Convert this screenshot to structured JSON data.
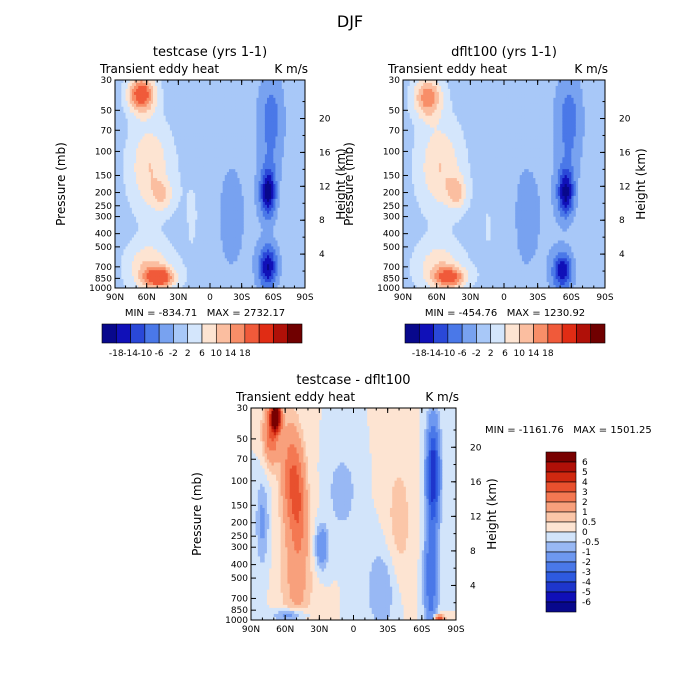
{
  "page_title": "DJF",
  "chart_data": [
    {
      "type": "heatmap",
      "title": "testcase (yrs 1-1)",
      "left_label": "Transient eddy heat",
      "right_label": "K m/s",
      "xlabel": "",
      "ylabel": "Pressure (mb)",
      "y2label": "Height (km)",
      "x_ticks": [
        "90N",
        "60N",
        "30N",
        "0",
        "30S",
        "60S",
        "90S"
      ],
      "y_ticks": [
        "30",
        "50",
        "70",
        "100",
        "150",
        "200",
        "250",
        "300",
        "400",
        "500",
        "700",
        "850",
        "1000"
      ],
      "y2_ticks": [
        "20",
        "16",
        "12",
        "8",
        "4"
      ],
      "min_max": "MIN = -834.71   MAX = 2732.17",
      "colorbar_labels": [
        "-18",
        "-14",
        "-10",
        "-6",
        "-2",
        "2",
        "6",
        "10",
        "14",
        "18"
      ],
      "levels": [
        -18,
        -14,
        -10,
        -6,
        -2,
        2,
        6,
        10,
        14,
        18
      ],
      "colors": [
        "#08088c",
        "#1010b8",
        "#2a48d8",
        "#4a78e8",
        "#78a2f0",
        "#a8c8f8",
        "#d4e6fc",
        "#fde4d2",
        "#fbbea0",
        "#f88e68",
        "#f05a3a",
        "#e02c14",
        "#b01008",
        "#700000"
      ],
      "features": [
        {
          "lat": 65,
          "p": 38,
          "v": 22,
          "lat_w": 9,
          "p_w": 0.22
        },
        {
          "lat": 57,
          "p": 130,
          "v": 10,
          "lat_w": 14,
          "p_w": 0.55
        },
        {
          "lat": 45,
          "p": 210,
          "v": 7,
          "lat_w": 7,
          "p_w": 0.18
        },
        {
          "lat": 48,
          "p": 840,
          "v": 20,
          "lat_w": 10,
          "p_w": 0.12
        },
        {
          "lat": 58,
          "p": 700,
          "v": 10,
          "lat_w": 15,
          "p_w": 0.3
        },
        {
          "lat": -55,
          "p": 200,
          "v": -20,
          "lat_w": 5,
          "p_w": 0.28
        },
        {
          "lat": -55,
          "p": 700,
          "v": -18,
          "lat_w": 6,
          "p_w": 0.25
        },
        {
          "lat": -58,
          "p": 60,
          "v": -8,
          "lat_w": 8,
          "p_w": 0.6
        },
        {
          "lat": -20,
          "p": 300,
          "v": -2.5,
          "lat_w": 18,
          "p_w": 1.2
        },
        {
          "lat": 15,
          "p": 300,
          "v": 2.5,
          "lat_w": 10,
          "p_w": 0.9
        }
      ]
    },
    {
      "type": "heatmap",
      "title": "dflt100 (yrs 1-1)",
      "left_label": "Transient eddy heat",
      "right_label": "K m/s",
      "xlabel": "",
      "ylabel": "Pressure (mb)",
      "y2label": "Height (km)",
      "x_ticks": [
        "90N",
        "60N",
        "30N",
        "0",
        "30S",
        "60S",
        "90S"
      ],
      "y_ticks": [
        "30",
        "50",
        "70",
        "100",
        "150",
        "200",
        "250",
        "300",
        "400",
        "500",
        "700",
        "850",
        "1000"
      ],
      "y2_ticks": [
        "20",
        "16",
        "12",
        "8",
        "4"
      ],
      "min_max": "MIN = -454.76   MAX = 1230.92",
      "colorbar_labels": [
        "-18",
        "-14",
        "-10",
        "-6",
        "-2",
        "2",
        "6",
        "10",
        "14",
        "18"
      ],
      "levels": [
        -18,
        -14,
        -10,
        -6,
        -2,
        2,
        6,
        10,
        14,
        18
      ],
      "colors": [
        "#08088c",
        "#1010b8",
        "#2a48d8",
        "#4a78e8",
        "#78a2f0",
        "#a8c8f8",
        "#d4e6fc",
        "#fde4d2",
        "#fbbea0",
        "#f88e68",
        "#f05a3a",
        "#e02c14",
        "#b01008",
        "#700000"
      ],
      "features": [
        {
          "lat": 68,
          "p": 40,
          "v": 16,
          "lat_w": 9,
          "p_w": 0.25
        },
        {
          "lat": 57,
          "p": 130,
          "v": 10,
          "lat_w": 14,
          "p_w": 0.55
        },
        {
          "lat": 42,
          "p": 200,
          "v": 9,
          "lat_w": 6,
          "p_w": 0.2
        },
        {
          "lat": 48,
          "p": 840,
          "v": 17,
          "lat_w": 10,
          "p_w": 0.12
        },
        {
          "lat": 58,
          "p": 700,
          "v": 9,
          "lat_w": 15,
          "p_w": 0.3
        },
        {
          "lat": -55,
          "p": 200,
          "v": -19,
          "lat_w": 5,
          "p_w": 0.28
        },
        {
          "lat": -52,
          "p": 750,
          "v": -17,
          "lat_w": 6,
          "p_w": 0.22
        },
        {
          "lat": -58,
          "p": 60,
          "v": -8,
          "lat_w": 8,
          "p_w": 0.6
        },
        {
          "lat": -20,
          "p": 300,
          "v": -2.5,
          "lat_w": 18,
          "p_w": 1.2
        },
        {
          "lat": 12,
          "p": 350,
          "v": 2.5,
          "lat_w": 10,
          "p_w": 0.9
        }
      ]
    },
    {
      "type": "heatmap",
      "title": "testcase - dflt100",
      "left_label": "Transient eddy heat",
      "right_label": "K m/s",
      "xlabel": "",
      "ylabel": "Pressure (mb)",
      "y2label": "Height (km)",
      "x_ticks": [
        "90N",
        "60N",
        "30N",
        "0",
        "30S",
        "60S",
        "90S"
      ],
      "y_ticks": [
        "30",
        "50",
        "70",
        "100",
        "150",
        "200",
        "250",
        "300",
        "400",
        "500",
        "700",
        "850",
        "1000"
      ],
      "y2_ticks": [
        "20",
        "16",
        "12",
        "8",
        "4"
      ],
      "min_max": "MIN = -1161.76   MAX = 1501.25",
      "colorbar_labels": [
        "6",
        "5",
        "4",
        "3",
        "2",
        "1",
        "0.5",
        "0",
        "-0.5",
        "-1",
        "-2",
        "-3",
        "-4",
        "-5",
        "-6"
      ],
      "levels": [
        -6,
        -5,
        -4,
        -3,
        -2,
        -1,
        -0.5,
        0,
        0.5,
        1,
        2,
        3,
        4,
        5,
        6
      ],
      "colors": [
        "#08088c",
        "#1010b8",
        "#1e36cc",
        "#2e5ae0",
        "#4a78e8",
        "#6e98f0",
        "#98b8f4",
        "#d2e4fa",
        "#fde4d2",
        "#fbc6a8",
        "#f8a07c",
        "#f47852",
        "#e8502e",
        "#d02810",
        "#b01008",
        "#780000"
      ],
      "features": [
        {
          "lat": 68,
          "p": 35,
          "v": 8,
          "lat_w": 3,
          "p_w": 0.15
        },
        {
          "lat": 72,
          "p": 45,
          "v": 3,
          "lat_w": 5,
          "p_w": 0.35
        },
        {
          "lat": 55,
          "p": 90,
          "v": 2.5,
          "lat_w": 6,
          "p_w": 0.6
        },
        {
          "lat": 48,
          "p": 150,
          "v": 2,
          "lat_w": 5,
          "p_w": 0.6
        },
        {
          "lat": 50,
          "p": 500,
          "v": 1.2,
          "lat_w": 10,
          "p_w": 0.8
        },
        {
          "lat": -70,
          "p": 90,
          "v": -5,
          "lat_w": 4,
          "p_w": 0.6
        },
        {
          "lat": -68,
          "p": 500,
          "v": -3,
          "lat_w": 4,
          "p_w": 0.6
        },
        {
          "lat": 28,
          "p": 300,
          "v": -2,
          "lat_w": 4,
          "p_w": 0.25
        },
        {
          "lat": 80,
          "p": 200,
          "v": -1.2,
          "lat_w": 4,
          "p_w": 0.5
        },
        {
          "lat": -25,
          "p": 600,
          "v": -1,
          "lat_w": 10,
          "p_w": 0.5
        },
        {
          "lat": 10,
          "p": 120,
          "v": -1,
          "lat_w": 8,
          "p_w": 0.4
        },
        {
          "lat": -40,
          "p": 200,
          "v": 0.8,
          "lat_w": 8,
          "p_w": 0.8
        },
        {
          "lat": 55,
          "p": 930,
          "v": -1.8,
          "lat_w": 10,
          "p_w": 0.08
        },
        {
          "lat": -75,
          "p": 970,
          "v": 4,
          "lat_w": 3,
          "p_w": 0.04
        }
      ]
    }
  ]
}
